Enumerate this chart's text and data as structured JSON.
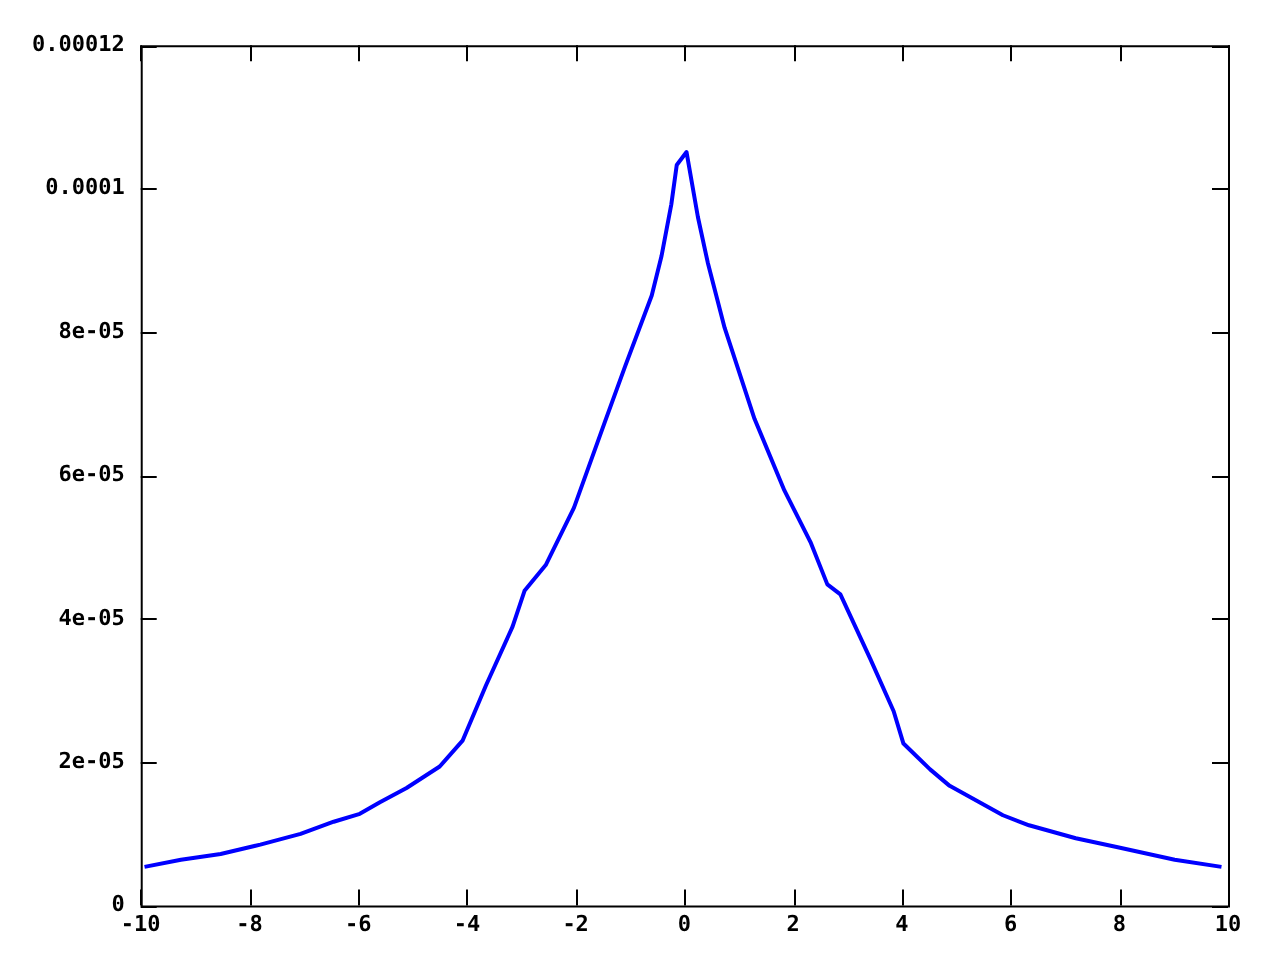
{
  "chart_data": {
    "type": "line",
    "x": [
      -9.93,
      -9.26,
      -8.53,
      -7.8,
      -7.06,
      -6.45,
      -5.97,
      -5.6,
      -5.11,
      -4.5,
      -4.08,
      -3.65,
      -3.16,
      -2.94,
      -2.55,
      -2.03,
      -1.46,
      -1.09,
      -0.6,
      -0.42,
      -0.24,
      -0.14,
      0.04,
      0.25,
      0.43,
      0.74,
      1.29,
      1.84,
      2.32,
      2.63,
      2.87,
      3.42,
      3.85,
      4.03,
      4.52,
      4.88,
      5.86,
      6.34,
      7.2,
      7.93,
      9.02,
      9.88
    ],
    "series": [
      {
        "color": "#0000ff",
        "values": [
          5.4e-06,
          6.4e-06,
          7.2e-06,
          8.5e-06,
          1e-05,
          1.17e-05,
          1.28e-05,
          1.44e-05,
          1.64e-05,
          1.94e-05,
          2.3e-05,
          3.07e-05,
          3.89e-05,
          4.39e-05,
          4.75e-05,
          5.55e-05,
          6.75e-05,
          7.52e-05,
          8.51e-05,
          9.06e-05,
          9.78e-05,
          0.0001033,
          0.0001051,
          9.6e-05,
          8.97e-05,
          8.06e-05,
          6.79e-05,
          5.79e-05,
          5.07e-05,
          4.48e-05,
          4.34e-05,
          3.44e-05,
          2.71e-05,
          2.26e-05,
          1.9e-05,
          1.67e-05,
          1.26e-05,
          1.12e-05,
          9.4e-06,
          8.2e-06,
          6.4e-06,
          5.4e-06
        ]
      }
    ],
    "xlim": [
      -10,
      10
    ],
    "xticks": [
      -10,
      -8,
      -6,
      -4,
      -2,
      0,
      2,
      4,
      6,
      8,
      10
    ],
    "ylim": [
      0,
      0.00012
    ],
    "yticks": [
      0,
      {
        "value": 2e-05,
        "label": "2e-05"
      },
      {
        "value": 4e-05,
        "label": "4e-05"
      },
      {
        "value": 6e-05,
        "label": "6e-05"
      },
      {
        "value": 8e-05,
        "label": "8e-05"
      },
      {
        "value": 0.0001,
        "label": "0.0001"
      },
      {
        "value": 0.00012,
        "label": "0.00012"
      }
    ],
    "grid": false,
    "legend": false,
    "marker": "none",
    "line_style": "solid"
  }
}
